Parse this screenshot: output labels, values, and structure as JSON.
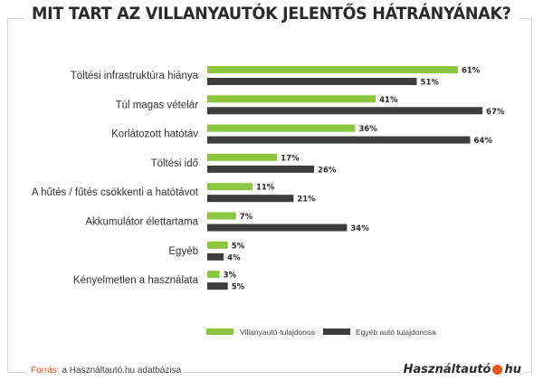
{
  "title": "MIT TART AZ VILLANYAUTÓK JELENTŐS HÁTRÁNYÁNAK?",
  "source_label": "Forrás:",
  "source_text": "a Használtautó.hu adatbázisa",
  "brand": {
    "name": "Használtautó",
    "suffix": "hu"
  },
  "colors": {
    "series1": "#8cc63f",
    "series2": "#3d3d3d",
    "accent": "#e8541a"
  },
  "chart_data": {
    "type": "bar",
    "orientation": "horizontal",
    "categories": [
      "Töltési infrastruktúra hiánya",
      "Túl magas vételár",
      "Korlátozott hatótáv",
      "Töltési idő",
      "A hűtés / fűtés csökkenti a hatótávot",
      "Akkumulátor élettartama",
      "Egyéb",
      "Kényelmetlen a használata"
    ],
    "series": [
      {
        "name": "Villanyautó-tulajdonos",
        "values": [
          61,
          41,
          36,
          17,
          11,
          7,
          5,
          3
        ]
      },
      {
        "name": "Egyéb autó tulajdonosa",
        "values": [
          51,
          67,
          64,
          26,
          21,
          34,
          4,
          5
        ]
      }
    ],
    "value_suffix": "%",
    "xlim": [
      0,
      70
    ],
    "grid": false,
    "legend": "bottom"
  }
}
